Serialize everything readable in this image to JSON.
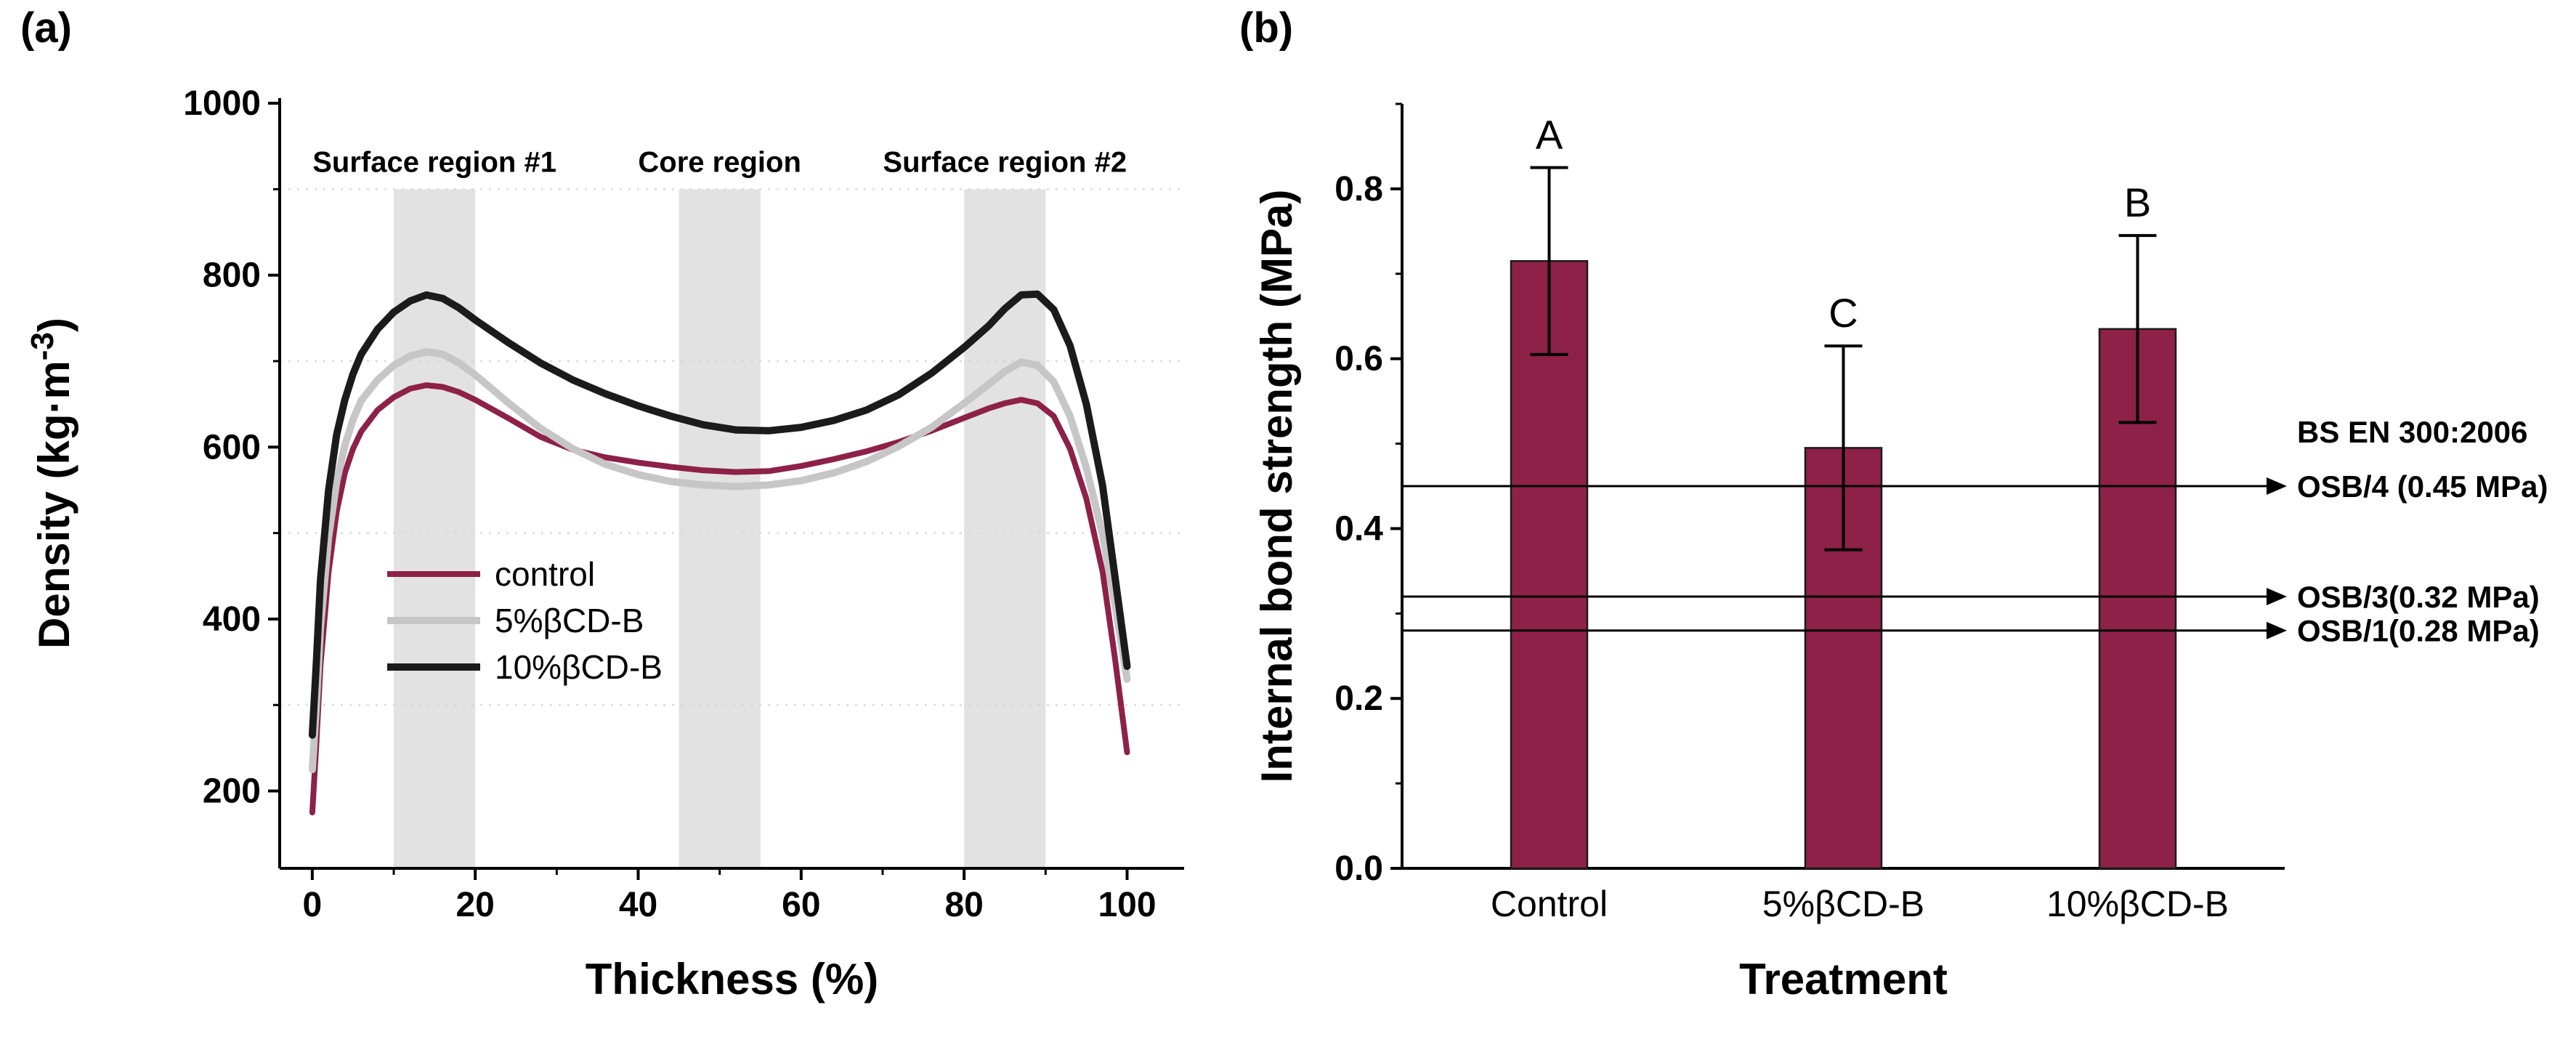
{
  "panels": {
    "a": {
      "label": "(a)"
    },
    "b": {
      "label": "(b)"
    }
  },
  "chart_data": [
    {
      "type": "line",
      "panel": "a",
      "xlabel": "Thickness (%)",
      "ylabel": "Density (kg·m⁻³)",
      "ylabel_parts": [
        "Density (kg·m",
        "-3",
        ")"
      ],
      "xlim": [
        -4,
        107
      ],
      "ylim": [
        110,
        1006
      ],
      "xticks": [
        0,
        20,
        40,
        60,
        80,
        100
      ],
      "xminor": [
        10,
        30,
        50,
        70,
        90
      ],
      "yticks": [
        200,
        400,
        600,
        800,
        1000
      ],
      "yminor": [
        300,
        500,
        700,
        900
      ],
      "grid_y": [
        300,
        500,
        700,
        900
      ],
      "band_color": "#e2e2e2",
      "bands": [
        {
          "label": "Surface region #1",
          "x0": 10,
          "x1": 20,
          "y_top": 900
        },
        {
          "label": "Core region",
          "x0": 45,
          "x1": 55,
          "y_top": 900
        },
        {
          "label": "Surface region #2",
          "x0": 80,
          "x1": 90,
          "y_top": 900
        }
      ],
      "x": [
        0,
        0.5,
        1,
        2,
        3,
        4,
        5,
        6,
        8,
        10,
        12,
        14,
        16,
        18,
        20,
        24,
        28,
        32,
        36,
        40,
        44,
        48,
        52,
        56,
        60,
        64,
        68,
        72,
        76,
        80,
        83,
        85,
        87,
        89,
        91,
        93,
        95,
        97,
        98.5,
        100
      ],
      "series": [
        {
          "key": "control",
          "name": "control",
          "color": "#8d2148",
          "width": 8,
          "y": [
            175,
            255,
            345,
            455,
            525,
            570,
            598,
            618,
            643,
            658,
            668,
            672,
            670,
            664,
            655,
            634,
            612,
            597,
            588,
            582,
            577,
            573,
            571,
            572,
            578,
            586,
            595,
            606,
            619,
            634,
            645,
            651,
            655,
            651,
            636,
            598,
            540,
            455,
            355,
            245
          ]
        },
        {
          "key": "5pct",
          "name": "5%βCD-B",
          "color": "#c6c6c6",
          "width": 10,
          "y": [
            225,
            300,
            390,
            495,
            560,
            602,
            632,
            654,
            678,
            695,
            706,
            711,
            708,
            698,
            684,
            652,
            622,
            598,
            580,
            568,
            560,
            556,
            554,
            556,
            561,
            570,
            583,
            601,
            623,
            651,
            673,
            688,
            699,
            695,
            676,
            636,
            576,
            498,
            418,
            330
          ]
        },
        {
          "key": "10pct",
          "name": "10%βCD-B",
          "color": "#1b1b1b",
          "width": 10,
          "y": [
            265,
            350,
            445,
            550,
            615,
            655,
            685,
            708,
            737,
            757,
            770,
            777,
            773,
            762,
            748,
            722,
            698,
            678,
            662,
            648,
            636,
            626,
            620,
            619,
            623,
            631,
            643,
            661,
            686,
            716,
            741,
            761,
            777,
            778,
            760,
            718,
            650,
            555,
            450,
            345
          ]
        }
      ],
      "legend_position": "inside-left-middle"
    },
    {
      "type": "bar",
      "panel": "b",
      "categories": [
        "Control",
        "5%βCD-B",
        "10%βCD-B"
      ],
      "values": [
        0.715,
        0.495,
        0.635
      ],
      "error_low": [
        0.11,
        0.12,
        0.11
      ],
      "error_high": [
        0.11,
        0.12,
        0.11
      ],
      "letters": [
        "A",
        "C",
        "B"
      ],
      "xlabel": "Treatment",
      "ylabel": "Internal bond strength (MPa)",
      "ylim": [
        0,
        0.9
      ],
      "yticks": [
        0,
        0.2,
        0.4,
        0.6,
        0.8
      ],
      "ytick_labels": [
        "0.0",
        "0.2",
        "0.4",
        "0.6",
        "0.8"
      ],
      "yminor": [
        0.1,
        0.3,
        0.5,
        0.7,
        0.9
      ],
      "bar_color": "#8d2148",
      "bar_edge": "#1b1b1b",
      "reference": {
        "header": "BS EN 300:2006",
        "lines": [
          {
            "value": 0.45,
            "label": "OSB/4 (0.45 MPa)"
          },
          {
            "value": 0.32,
            "label": "OSB/3(0.32 MPa)"
          },
          {
            "value": 0.28,
            "label": "OSB/1(0.28 MPa)"
          }
        ]
      }
    }
  ]
}
